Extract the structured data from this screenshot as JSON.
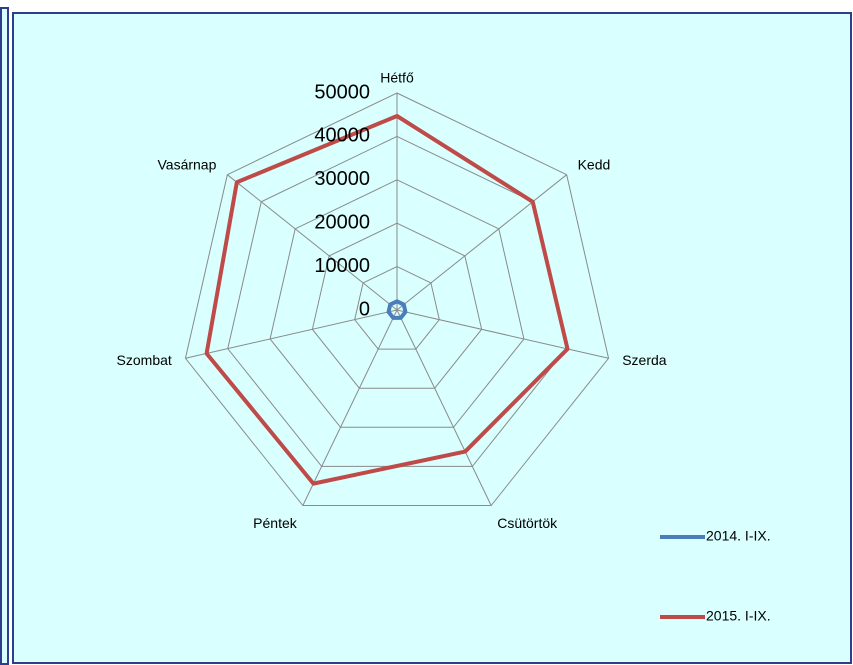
{
  "chart_data": {
    "type": "radar",
    "categories": [
      "Hétfő",
      "Kedd",
      "Szerda",
      "Csütörtök",
      "Péntek",
      "Szombat",
      "Vasárnap"
    ],
    "series": [
      {
        "name": "2014. I-IX.",
        "color": "#4a7ebb",
        "values": [
          2000,
          2000,
          2000,
          2000,
          2000,
          2000,
          2000
        ]
      },
      {
        "name": "2015. I-IX.",
        "color": "#be4b48",
        "values": [
          44700,
          40000,
          40300,
          36200,
          44400,
          45000,
          47200
        ]
      }
    ],
    "ylim": [
      0,
      50000
    ],
    "yticks": [
      0,
      10000,
      20000,
      30000,
      40000,
      50000
    ],
    "grid": true,
    "legend": "right"
  }
}
